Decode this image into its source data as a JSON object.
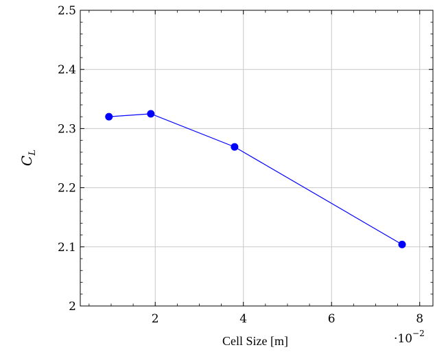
{
  "chart_data": {
    "type": "line",
    "xlabel": "Cell Size [m]",
    "ylabel_main": "C",
    "ylabel_sub": "L",
    "x_multiplier_base": "·10",
    "x_multiplier_exp": "−2",
    "xlim": [
      0.3,
      8.3
    ],
    "ylim": [
      2.0,
      2.5
    ],
    "x_ticks": [
      2,
      4,
      6,
      8
    ],
    "x_tick_labels": [
      "2",
      "4",
      "6",
      "8"
    ],
    "y_ticks": [
      2.0,
      2.1,
      2.2,
      2.3,
      2.4,
      2.5
    ],
    "y_tick_labels": [
      "2",
      "2.1",
      "2.2",
      "2.3",
      "2.4",
      "2.5"
    ],
    "grid": true,
    "colors": {
      "series": "#0000ff",
      "grid": "#c8c8c8",
      "axis": "#000000"
    },
    "series": [
      {
        "x": [
          0.95,
          1.9,
          3.8,
          7.6
        ],
        "y": [
          2.32,
          2.325,
          2.269,
          2.104
        ]
      }
    ]
  }
}
